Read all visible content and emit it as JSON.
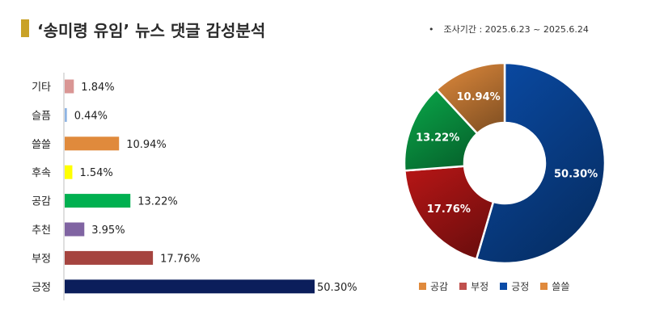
{
  "header": {
    "title": "‘송미령 유임’ 뉴스 댓글 감성분석",
    "period": "조사기간 : 2025.6.23 ~ 2025.6.24",
    "title_accent_color": "#c9a227"
  },
  "chart_data": [
    {
      "type": "bar",
      "orientation": "horizontal",
      "categories": [
        "기타",
        "슬픔",
        "쓸쓸",
        "후속",
        "공감",
        "추천",
        "부정",
        "긍정"
      ],
      "values": [
        1.84,
        0.44,
        10.94,
        1.54,
        13.22,
        3.95,
        17.76,
        50.3
      ],
      "value_labels": [
        "1.84%",
        "0.44%",
        "10.94%",
        "1.54%",
        "13.22%",
        "3.95%",
        "17.76%",
        "50.30%"
      ],
      "colors": [
        "#d99694",
        "#8eb4e3",
        "#e08a3c",
        "#ffff00",
        "#00b050",
        "#8064a2",
        "#a5443f",
        "#0b1e5b"
      ],
      "xlim": [
        0,
        50.3
      ]
    },
    {
      "type": "pie",
      "style": "donut",
      "labels": [
        "긍정",
        "부정",
        "공감",
        "쓸쓸"
      ],
      "values": [
        50.3,
        17.76,
        13.22,
        10.94
      ],
      "value_labels": [
        "50.30%",
        "17.76%",
        "13.22%",
        "10.94%"
      ],
      "colors": [
        "#0a4ba6",
        "#b81616",
        "#0aa84a",
        "#e08a3c"
      ],
      "legend": {
        "position": "bottom",
        "items": [
          {
            "label": "공감",
            "color": "#e08a3c"
          },
          {
            "label": "부정",
            "color": "#c0504d"
          },
          {
            "label": "긍정",
            "color": "#0a4ba6"
          },
          {
            "label": "쓸쓸",
            "color": "#e08a3c"
          }
        ]
      }
    }
  ]
}
